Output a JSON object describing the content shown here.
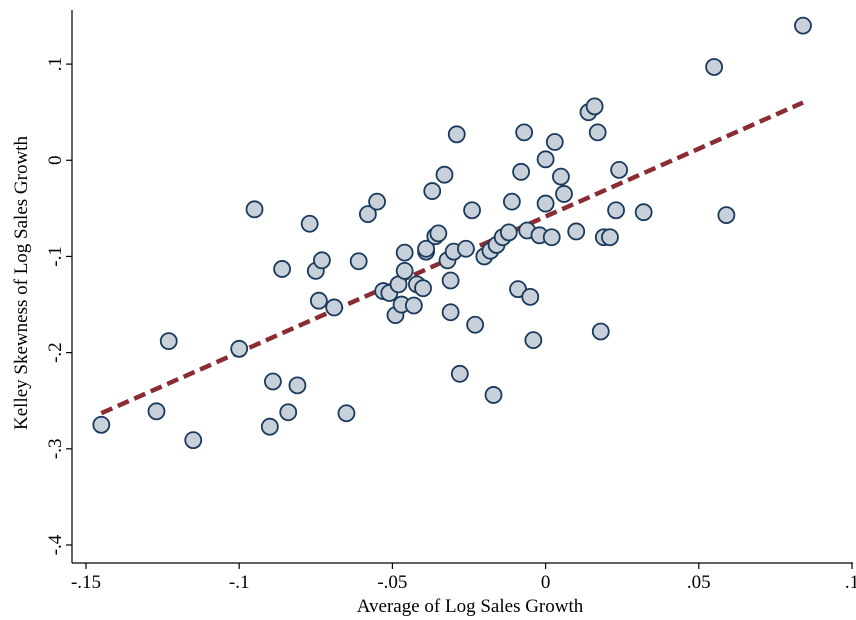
{
  "chart_data": {
    "type": "scatter",
    "title": "",
    "xlabel": "Average of Log Sales Growth",
    "ylabel": "Kelley Skewness of Log Sales Growth",
    "xlim": [
      -0.15,
      0.1
    ],
    "ylim": [
      -0.4,
      0.15
    ],
    "x_ticks": [
      -0.15,
      -0.1,
      -0.05,
      0,
      0.05,
      0.1
    ],
    "x_tick_labels": [
      "-.15",
      "-.1",
      "-.05",
      "0",
      ".05",
      ".1"
    ],
    "y_ticks": [
      -0.4,
      -0.3,
      -0.2,
      -0.1,
      0,
      0.1
    ],
    "y_tick_labels": [
      "-.4",
      "-.3",
      "-.2",
      "-.1",
      "0",
      ".1"
    ],
    "grid": false,
    "legend": "none",
    "colors": {
      "marker_fill": "#c8d0da",
      "marker_edge": "#1a3a5c",
      "fit_line": "#8b2c33"
    },
    "fit_line": {
      "x": [
        -0.145,
        0.084
      ],
      "y": [
        -0.263,
        0.06
      ]
    },
    "points": [
      {
        "x": 0.084,
        "y": 0.14
      },
      {
        "x": 0.055,
        "y": 0.097
      },
      {
        "x": 0.059,
        "y": -0.057
      },
      {
        "x": -0.145,
        "y": -0.275
      },
      {
        "x": -0.127,
        "y": -0.261
      },
      {
        "x": -0.123,
        "y": -0.188
      },
      {
        "x": -0.115,
        "y": -0.291
      },
      {
        "x": -0.1,
        "y": -0.196
      },
      {
        "x": -0.095,
        "y": -0.051
      },
      {
        "x": -0.09,
        "y": -0.277
      },
      {
        "x": -0.089,
        "y": -0.23
      },
      {
        "x": -0.086,
        "y": -0.113
      },
      {
        "x": -0.084,
        "y": -0.262
      },
      {
        "x": -0.081,
        "y": -0.234
      },
      {
        "x": -0.077,
        "y": -0.066
      },
      {
        "x": -0.075,
        "y": -0.115
      },
      {
        "x": -0.074,
        "y": -0.146
      },
      {
        "x": -0.073,
        "y": -0.104
      },
      {
        "x": -0.069,
        "y": -0.153
      },
      {
        "x": -0.065,
        "y": -0.263
      },
      {
        "x": -0.061,
        "y": -0.105
      },
      {
        "x": -0.058,
        "y": -0.056
      },
      {
        "x": -0.055,
        "y": -0.043
      },
      {
        "x": -0.053,
        "y": -0.136
      },
      {
        "x": -0.051,
        "y": -0.138
      },
      {
        "x": -0.049,
        "y": -0.161
      },
      {
        "x": -0.048,
        "y": -0.129
      },
      {
        "x": -0.047,
        "y": -0.15
      },
      {
        "x": -0.046,
        "y": -0.096
      },
      {
        "x": -0.046,
        "y": -0.115
      },
      {
        "x": -0.043,
        "y": -0.151
      },
      {
        "x": -0.042,
        "y": -0.129
      },
      {
        "x": -0.04,
        "y": -0.133
      },
      {
        "x": -0.039,
        "y": -0.095
      },
      {
        "x": -0.039,
        "y": -0.092
      },
      {
        "x": -0.037,
        "y": -0.032
      },
      {
        "x": -0.036,
        "y": -0.079
      },
      {
        "x": -0.035,
        "y": -0.076
      },
      {
        "x": -0.033,
        "y": -0.015
      },
      {
        "x": -0.032,
        "y": -0.104
      },
      {
        "x": -0.031,
        "y": -0.158
      },
      {
        "x": -0.031,
        "y": -0.125
      },
      {
        "x": -0.03,
        "y": -0.095
      },
      {
        "x": -0.029,
        "y": 0.027
      },
      {
        "x": -0.028,
        "y": -0.222
      },
      {
        "x": -0.026,
        "y": -0.092
      },
      {
        "x": -0.024,
        "y": -0.052
      },
      {
        "x": -0.023,
        "y": -0.171
      },
      {
        "x": -0.02,
        "y": -0.1
      },
      {
        "x": -0.018,
        "y": -0.094
      },
      {
        "x": -0.017,
        "y": -0.244
      },
      {
        "x": -0.016,
        "y": -0.088
      },
      {
        "x": -0.014,
        "y": -0.08
      },
      {
        "x": -0.012,
        "y": -0.075
      },
      {
        "x": -0.011,
        "y": -0.043
      },
      {
        "x": -0.009,
        "y": -0.134
      },
      {
        "x": -0.008,
        "y": -0.012
      },
      {
        "x": -0.007,
        "y": 0.029
      },
      {
        "x": -0.006,
        "y": -0.073
      },
      {
        "x": -0.005,
        "y": -0.142
      },
      {
        "x": -0.004,
        "y": -0.187
      },
      {
        "x": -0.002,
        "y": -0.078
      },
      {
        "x": 0.0,
        "y": 0.001
      },
      {
        "x": 0.0,
        "y": -0.045
      },
      {
        "x": 0.002,
        "y": -0.08
      },
      {
        "x": 0.003,
        "y": 0.019
      },
      {
        "x": 0.005,
        "y": -0.017
      },
      {
        "x": 0.006,
        "y": -0.035
      },
      {
        "x": 0.01,
        "y": -0.074
      },
      {
        "x": 0.014,
        "y": 0.05
      },
      {
        "x": 0.016,
        "y": 0.056
      },
      {
        "x": 0.017,
        "y": 0.029
      },
      {
        "x": 0.018,
        "y": -0.178
      },
      {
        "x": 0.019,
        "y": -0.08
      },
      {
        "x": 0.021,
        "y": -0.08
      },
      {
        "x": 0.023,
        "y": -0.052
      },
      {
        "x": 0.024,
        "y": -0.01
      },
      {
        "x": 0.032,
        "y": -0.054
      }
    ]
  }
}
